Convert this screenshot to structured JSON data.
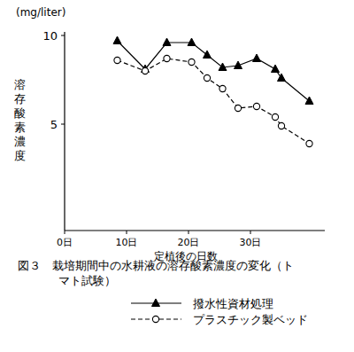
{
  "chart_data": {
    "type": "line",
    "title": "図３　栽培期間中の水耕液の溶存酸素濃度の変化（トマト試験）",
    "y_unit": "(mg/liter)",
    "y_label": "溶存酸素濃度",
    "x_label": "定植後の日数",
    "x": [
      8.5,
      13,
      16.5,
      20.5,
      23,
      25.5,
      28,
      31,
      34,
      35,
      39.5
    ],
    "series": [
      {
        "name": "撥水性資材処理",
        "color": "#000000",
        "marker": "triangle",
        "line_style": "solid",
        "values": [
          9.7,
          8.1,
          9.6,
          9.6,
          8.9,
          8.2,
          8.3,
          8.7,
          8.1,
          7.6,
          6.3
        ]
      },
      {
        "name": "プラスチック製ベッド",
        "color": "#000000",
        "marker": "circle",
        "line_style": "dashed",
        "values": [
          8.6,
          8.0,
          8.7,
          8.5,
          7.6,
          7.0,
          5.9,
          6.0,
          5.4,
          4.9,
          3.9
        ]
      }
    ],
    "xlim": [
      0,
      42
    ],
    "xticks": [
      {
        "value": 0,
        "label": "0日"
      },
      {
        "value": 10,
        "label": "10日"
      },
      {
        "value": 20,
        "label": "20日"
      },
      {
        "value": 30,
        "label": "30日"
      }
    ],
    "ylim": [
      -1,
      10.2
    ],
    "yticks": [
      5,
      10
    ],
    "grid": false,
    "legend": "bottom"
  }
}
